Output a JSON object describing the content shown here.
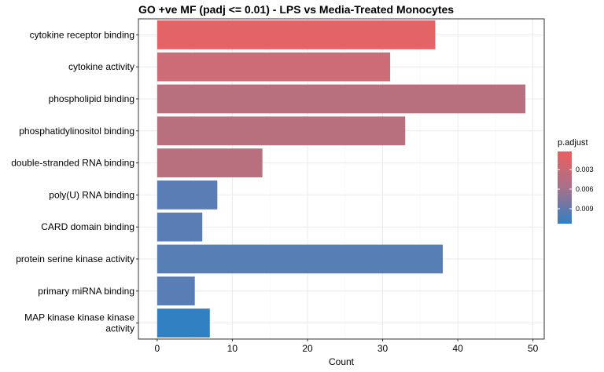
{
  "chart_data": {
    "type": "bar",
    "orientation": "horizontal",
    "title": "GO +ve MF (padj <= 0.01) - LPS vs Media-Treated Monocytes",
    "xlabel": "Count",
    "ylabel": "",
    "xlim": [
      -2.5,
      51.5
    ],
    "x_ticks": [
      "0",
      "10",
      "20",
      "30",
      "40",
      "50"
    ],
    "grid": true,
    "categories": [
      "cytokine receptor binding",
      "cytokine activity",
      "phospholipid binding",
      "phosphatidylinositol binding",
      "double-stranded RNA binding",
      "poly(U) RNA binding",
      "CARD domain binding",
      "protein serine kinase activity",
      "primary miRNA binding",
      "MAP kinase kinase kinase activity"
    ],
    "category_display_lines": [
      [
        "cytokine receptor binding"
      ],
      [
        "cytokine activity"
      ],
      [
        "phospholipid binding"
      ],
      [
        "phosphatidylinositol binding"
      ],
      [
        "double-stranded RNA binding"
      ],
      [
        "poly(U) RNA binding"
      ],
      [
        "CARD domain binding"
      ],
      [
        "protein serine kinase activity"
      ],
      [
        "primary miRNA binding"
      ],
      [
        "MAP kinase kinase kinase",
        "activity"
      ]
    ],
    "values": [
      37,
      31,
      49,
      33,
      14,
      8,
      6,
      38,
      5,
      7
    ],
    "bar_colors": [
      "#e26466",
      "#cb6c77",
      "#b8707e",
      "#b8707e",
      "#b8707e",
      "#5a7db5",
      "#5a7db5",
      "#577fb5",
      "#5a7db5",
      "#3180c2"
    ],
    "legend": {
      "title": "p.adjust",
      "position": "right",
      "color_low": "#e8605e",
      "color_high": "#3180c2",
      "ticks": [
        "0.003",
        "0.006",
        "0.009"
      ]
    }
  }
}
